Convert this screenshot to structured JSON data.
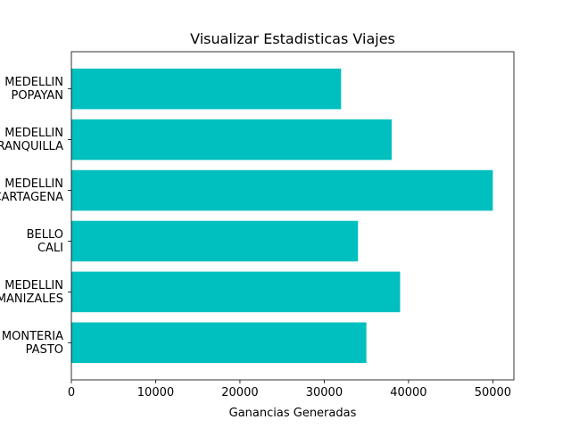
{
  "chart_data": {
    "type": "bar",
    "orientation": "horizontal",
    "title": "Visualizar Estadisticas Viajes",
    "xlabel": "Ganancias Generadas",
    "ylabel": "",
    "categories": [
      "MONTERIA\nPASTO",
      "MEDELLIN\nMANIZALES",
      "BELLO\nCALI",
      "MEDELLIN\nCARTAGENA",
      "MEDELLIN\nBARRANQUILLA",
      "MEDELLIN\nPOPAYAN"
    ],
    "values": [
      35000,
      39000,
      34000,
      50000,
      38000,
      32000
    ],
    "xlim": [
      0,
      52500
    ],
    "xticks": [
      0,
      10000,
      20000,
      30000,
      40000,
      50000
    ],
    "xtick_labels": [
      "0",
      "10000",
      "20000",
      "30000",
      "40000",
      "50000"
    ],
    "bar_color": "#00bfbf",
    "grid": false,
    "legend": "none"
  }
}
